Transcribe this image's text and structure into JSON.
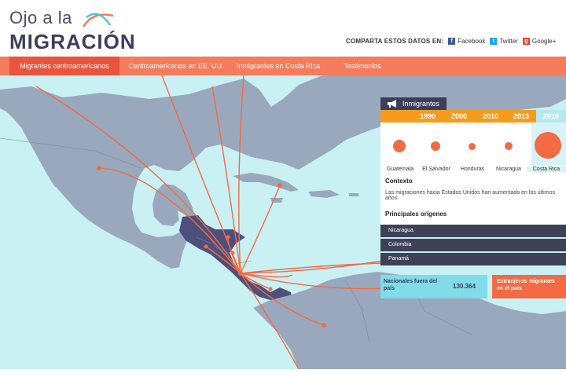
{
  "logo": {
    "line1": "Ojo a la",
    "line2": "MIGRACIÓN"
  },
  "share": {
    "label": "COMPARTA ESTOS DATOS EN:",
    "items": [
      {
        "label": "Facebook",
        "icon": "facebook-icon",
        "color": "#3b5998",
        "glyph": "f"
      },
      {
        "label": "Twitter",
        "icon": "twitter-icon",
        "color": "#1da1f2",
        "glyph": "t"
      },
      {
        "label": "Google+",
        "icon": "google-plus-icon",
        "color": "#dd4b39",
        "glyph": "g"
      }
    ]
  },
  "nav": {
    "items": [
      {
        "label": "Migrantes centroamericanos",
        "active": true
      },
      {
        "label": "Centroamericanos en EE. UU.",
        "active": false
      },
      {
        "label": "Inmigrantes en Costa Rica",
        "active": false
      },
      {
        "label": "Testimonios",
        "active": false
      }
    ]
  },
  "panel": {
    "tab_label": "Inmigrantes",
    "years": [
      "1990",
      "2000",
      "2010",
      "2013",
      "2016"
    ],
    "active_year": "2016",
    "countries": [
      "Guatemala",
      "El Salvador",
      "Honduras",
      "Nicaragua",
      "Costa Rica"
    ],
    "context_title": "Contexto",
    "context_text": "Las migraciones hacia Estados Unidos han aumentado en los últimos años.",
    "origins_title": "Principales orígenes",
    "origins": [
      "Nicaragua",
      "Colombia",
      "Panamá"
    ],
    "stat_left_label": "Nacionales fuera del país",
    "stat_left_value": "130.364",
    "stat_right_label": "Extranjeros migrantes en el país"
  },
  "colors": {
    "accent": "#f47b5c",
    "accent_dark": "#e8553b",
    "year_bar": "#f59c1d",
    "sea": "#c9f0f3",
    "land": "#9aa8bd",
    "central_america": "#4e4f7d",
    "panel_dark": "#3d3d5c"
  }
}
